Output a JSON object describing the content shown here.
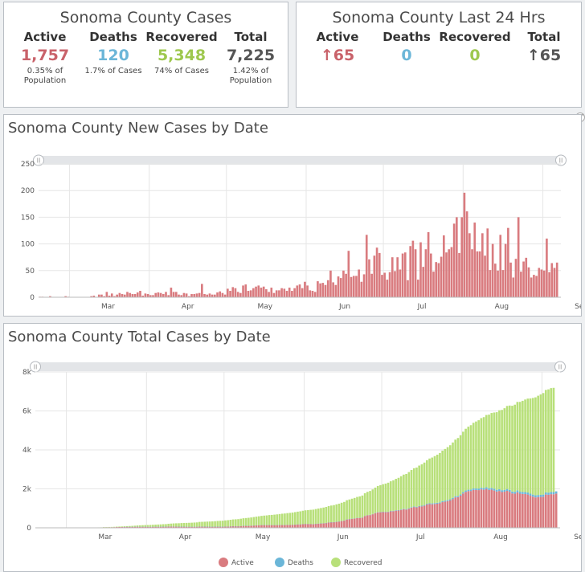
{
  "cases_panel": {
    "title": "Sonoma County Cases",
    "active": {
      "label": "Active",
      "value": "1,757",
      "sub": "0.35% of Population",
      "color": "#c9626a"
    },
    "deaths": {
      "label": "Deaths",
      "value": "120",
      "sub": "1.7% of Cases",
      "color": "#6bb6d8"
    },
    "recovered": {
      "label": "Recovered",
      "value": "5,348",
      "sub": "74% of Cases",
      "color": "#9ec84e"
    },
    "total": {
      "label": "Total",
      "value": "7,225",
      "sub": "1.42% of Population",
      "color": "#555555"
    }
  },
  "last24_panel": {
    "title": "Sonoma County Last 24 Hrs",
    "active": {
      "label": "Active",
      "value": "↑65",
      "color": "#c9626a"
    },
    "deaths": {
      "label": "Deaths",
      "value": "0",
      "color": "#6bb6d8"
    },
    "recovered": {
      "label": "Recovered",
      "value": "0",
      "color": "#9ec84e"
    },
    "total": {
      "label": "Total",
      "value": "↑65",
      "color": "#555555"
    }
  },
  "new_cases_chart": {
    "title": "Sonoma County New Cases by Date",
    "chart_data": {
      "type": "bar",
      "x_start": "2020-02-18",
      "x_end": "2020-09-07",
      "x_ticks": [
        "Mar",
        "Apr",
        "May",
        "Jun",
        "Jul",
        "Aug",
        "Sep"
      ],
      "y_ticks": [
        "0",
        "50",
        "100",
        "150",
        "200",
        "250"
      ],
      "ylim": [
        0,
        250
      ],
      "grid": true,
      "series": [
        {
          "color": "#d97b7f",
          "values": [
            1,
            1,
            0,
            0,
            2,
            0,
            0,
            0,
            0,
            0,
            2,
            1,
            0,
            0,
            0,
            0,
            0,
            0,
            0,
            0,
            2,
            3,
            0,
            5,
            5,
            2,
            10,
            3,
            7,
            2,
            5,
            8,
            6,
            5,
            10,
            8,
            6,
            6,
            9,
            12,
            3,
            7,
            6,
            4,
            4,
            8,
            9,
            8,
            6,
            10,
            4,
            18,
            10,
            10,
            5,
            4,
            8,
            7,
            2,
            6,
            6,
            7,
            8,
            25,
            6,
            5,
            7,
            5,
            5,
            9,
            11,
            8,
            5,
            16,
            12,
            19,
            17,
            10,
            8,
            22,
            24,
            12,
            13,
            17,
            20,
            22,
            18,
            20,
            15,
            10,
            18,
            8,
            13,
            13,
            17,
            16,
            12,
            18,
            12,
            17,
            22,
            24,
            17,
            29,
            22,
            13,
            12,
            10,
            30,
            26,
            27,
            23,
            32,
            50,
            28,
            23,
            39,
            36,
            50,
            44,
            87,
            38,
            40,
            40,
            52,
            29,
            43,
            117,
            71,
            44,
            78,
            93,
            83,
            42,
            46,
            33,
            47,
            75,
            49,
            75,
            52,
            82,
            84,
            32,
            96,
            106,
            90,
            33,
            103,
            57,
            90,
            122,
            82,
            48,
            66,
            64,
            76,
            116,
            84,
            90,
            94,
            138,
            150,
            83,
            150,
            196,
            161,
            120,
            90,
            140,
            86,
            86,
            120,
            78,
            129,
            51,
            100,
            63,
            50,
            117,
            51,
            100,
            130,
            65,
            37,
            72,
            150,
            48,
            67,
            74,
            56,
            37,
            42,
            40,
            55,
            52,
            50,
            110,
            47,
            64,
            55,
            65
          ]
        }
      ]
    }
  },
  "total_cases_chart": {
    "title": "Sonoma County Total Cases by Date",
    "chart_data": {
      "type": "bar",
      "stacked": true,
      "x_start": "2020-02-18",
      "x_end": "2020-09-07",
      "x_ticks": [
        "Mar",
        "Apr",
        "May",
        "Jun",
        "Jul",
        "Aug",
        "Sep"
      ],
      "y_ticks": [
        "0",
        "2k",
        "4k",
        "6k",
        "8k"
      ],
      "ylim": [
        0,
        8000
      ],
      "grid": true,
      "legend_position": "bottom-center",
      "series": [
        {
          "name": "Active",
          "color": "#d97b7f",
          "values": [
            1,
            2,
            2,
            2,
            4,
            4,
            4,
            4,
            4,
            4,
            6,
            7,
            7,
            7,
            6,
            6,
            6,
            6,
            6,
            6,
            7,
            9,
            9,
            13,
            17,
            18,
            26,
            27,
            31,
            31,
            34,
            39,
            42,
            42,
            48,
            50,
            50,
            50,
            52,
            57,
            52,
            53,
            53,
            51,
            50,
            52,
            55,
            56,
            56,
            59,
            58,
            67,
            67,
            67,
            64,
            60,
            60,
            59,
            55,
            54,
            53,
            53,
            53,
            66,
            63,
            60,
            60,
            58,
            56,
            58,
            60,
            59,
            57,
            65,
            67,
            76,
            82,
            80,
            78,
            89,
            100,
            100,
            102,
            108,
            116,
            126,
            131,
            138,
            140,
            137,
            142,
            137,
            137,
            138,
            143,
            146,
            145,
            150,
            149,
            153,
            162,
            173,
            176,
            191,
            198,
            196,
            193,
            188,
            203,
            213,
            224,
            231,
            245,
            275,
            283,
            287,
            306,
            321,
            349,
            370,
            429,
            444,
            461,
            476,
            502,
            504,
            520,
            603,
            643,
            655,
            696,
            751,
            796,
            801,
            809,
            803,
            811,
            844,
            852,
            881,
            887,
            920,
            954,
            935,
            980,
            1034,
            1068,
            1047,
            1092,
            1099,
            1131,
            1195,
            1220,
            1210,
            1224,
            1237,
            1260,
            1317,
            1342,
            1372,
            1404,
            1480,
            1560,
            1574,
            1651,
            1762,
            1845,
            1884,
            1891,
            1943,
            1940,
            1935,
            1974,
            1954,
            1994,
            1943,
            1957,
            1913,
            1860,
            1890,
            1837,
            1854,
            1898,
            1849,
            1766,
            1751,
            1822,
            1752,
            1737,
            1732,
            1708,
            1647,
            1600,
            1561,
            1577,
            1584,
            1596,
            1707,
            1694,
            1726,
            1723,
            1757
          ]
        },
        {
          "name": "Deaths",
          "color": "#6bb6d8",
          "values": [
            0,
            0,
            0,
            0,
            0,
            0,
            0,
            0,
            0,
            0,
            0,
            0,
            0,
            0,
            0,
            0,
            0,
            0,
            0,
            0,
            0,
            0,
            0,
            0,
            0,
            0,
            0,
            0,
            0,
            0,
            0,
            0,
            0,
            0,
            1,
            1,
            1,
            1,
            1,
            1,
            1,
            1,
            1,
            1,
            1,
            1,
            1,
            1,
            2,
            2,
            2,
            2,
            2,
            2,
            2,
            2,
            2,
            2,
            2,
            2,
            2,
            2,
            2,
            2,
            2,
            2,
            2,
            2,
            2,
            2,
            2,
            2,
            2,
            2,
            2,
            2,
            2,
            2,
            2,
            2,
            2,
            3,
            3,
            3,
            3,
            3,
            3,
            3,
            3,
            3,
            3,
            3,
            3,
            3,
            3,
            3,
            3,
            3,
            4,
            4,
            4,
            4,
            4,
            4,
            4,
            4,
            4,
            4,
            4,
            4,
            4,
            5,
            5,
            5,
            5,
            5,
            5,
            6,
            6,
            6,
            7,
            7,
            7,
            8,
            8,
            9,
            10,
            10,
            11,
            12,
            13,
            14,
            15,
            16,
            17,
            18,
            19,
            20,
            21,
            22,
            23,
            24,
            25,
            26,
            27,
            28,
            30,
            32,
            34,
            36,
            38,
            40,
            42,
            44,
            46,
            48,
            50,
            52,
            54,
            56,
            58,
            60,
            62,
            64,
            66,
            68,
            70,
            72,
            74,
            76,
            78,
            80,
            82,
            84,
            86,
            88,
            90,
            91,
            92,
            93,
            94,
            95,
            96,
            97,
            98,
            99,
            100,
            101,
            102,
            103,
            104,
            105,
            106,
            107,
            108,
            109,
            110,
            111,
            112,
            113,
            114,
            115,
            116,
            117,
            118,
            120
          ]
        },
        {
          "name": "Recovered",
          "color": "#b8e07a",
          "values": [
            0,
            0,
            0,
            0,
            0,
            0,
            0,
            0,
            0,
            0,
            0,
            0,
            0,
            0,
            1,
            1,
            1,
            1,
            1,
            1,
            2,
            3,
            3,
            4,
            5,
            6,
            8,
            10,
            13,
            15,
            17,
            20,
            23,
            28,
            31,
            36,
            42,
            48,
            55,
            62,
            74,
            80,
            86,
            92,
            97,
            103,
            108,
            113,
            118,
            125,
            130,
            139,
            148,
            157,
            165,
            173,
            181,
            189,
            195,
            201,
            208,
            215,
            223,
            235,
            243,
            251,
            258,
            265,
            272,
            281,
            290,
            299,
            306,
            314,
            324,
            334,
            345,
            355,
            365,
            376,
            388,
            399,
            410,
            421,
            433,
            445,
            458,
            471,
            484,
            497,
            510,
            523,
            536,
            549,
            562,
            575,
            588,
            601,
            614,
            627,
            640,
            653,
            667,
            681,
            696,
            711,
            726,
            741,
            756,
            772,
            788,
            804,
            821,
            838,
            856,
            874,
            893,
            912,
            932,
            952,
            980,
            1003,
            1026,
            1050,
            1075,
            1100,
            1127,
            1161,
            1192,
            1224,
            1261,
            1299,
            1337,
            1374,
            1411,
            1449,
            1486,
            1524,
            1565,
            1610,
            1656,
            1703,
            1752,
            1803,
            1854,
            1906,
            1960,
            2014,
            2069,
            2124,
            2180,
            2236,
            2294,
            2352,
            2410,
            2469,
            2529,
            2590,
            2652,
            2714,
            2777,
            2840,
            2905,
            2971,
            3037,
            3103,
            3169,
            3235,
            3303,
            3371,
            3439,
            3507,
            3575,
            3643,
            3711,
            3779,
            3847,
            3915,
            3983,
            4051,
            4120,
            4190,
            4260,
            4330,
            4400,
            4470,
            4540,
            4610,
            4680,
            4750,
            4820,
            4890,
            4960,
            5030,
            5095,
            5155,
            5210,
            5260,
            5300,
            5330,
            5348
          ]
        }
      ]
    }
  }
}
